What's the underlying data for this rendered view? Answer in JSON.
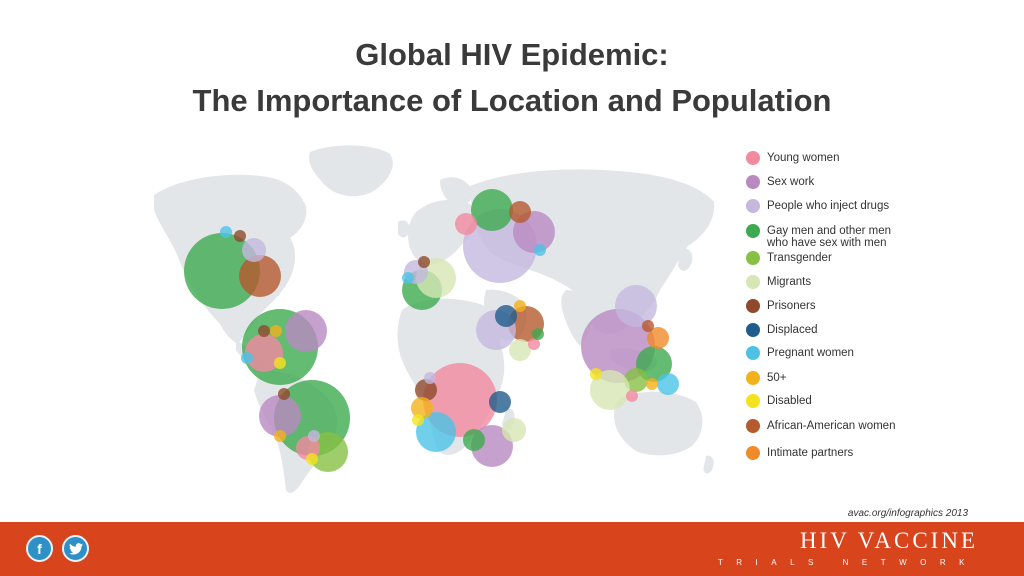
{
  "title": {
    "line1": "Global HIV Epidemic:",
    "line2": "The Importance of Location and Population"
  },
  "legend": [
    {
      "label": "Young women",
      "color": "#f28aa0"
    },
    {
      "label": "Sex work",
      "color": "#b98ac2"
    },
    {
      "label": "People who inject drugs",
      "color": "#c4b8de"
    },
    {
      "label": "Gay men and other men",
      "label2": "who have sex with men",
      "color": "#3daa4f"
    },
    {
      "label": "Transgender",
      "color": "#86c143"
    },
    {
      "label": "Migrants",
      "color": "#d6e6b4"
    },
    {
      "label": "Prisoners",
      "color": "#8e4a2a"
    },
    {
      "label": "Displaced",
      "color": "#215d8c"
    },
    {
      "label": "Pregnant women",
      "color": "#4cc3e6"
    },
    {
      "label": "50+",
      "color": "#f2b21b"
    },
    {
      "label": "Disabled",
      "color": "#f4e31c"
    },
    {
      "label": "African-American women",
      "color": "#b55a2e"
    },
    {
      "label": "Intimate partners",
      "color": "#f08a2b"
    }
  ],
  "credit": "avac.org/infographics 2013",
  "footer": {
    "color": "#d8441c",
    "logo_main": "HIV VACCINE",
    "logo_sub": "TRIALS NETWORK",
    "social": [
      {
        "icon": "facebook-icon",
        "glyph": "f"
      },
      {
        "icon": "twitter-icon"
      }
    ]
  }
}
